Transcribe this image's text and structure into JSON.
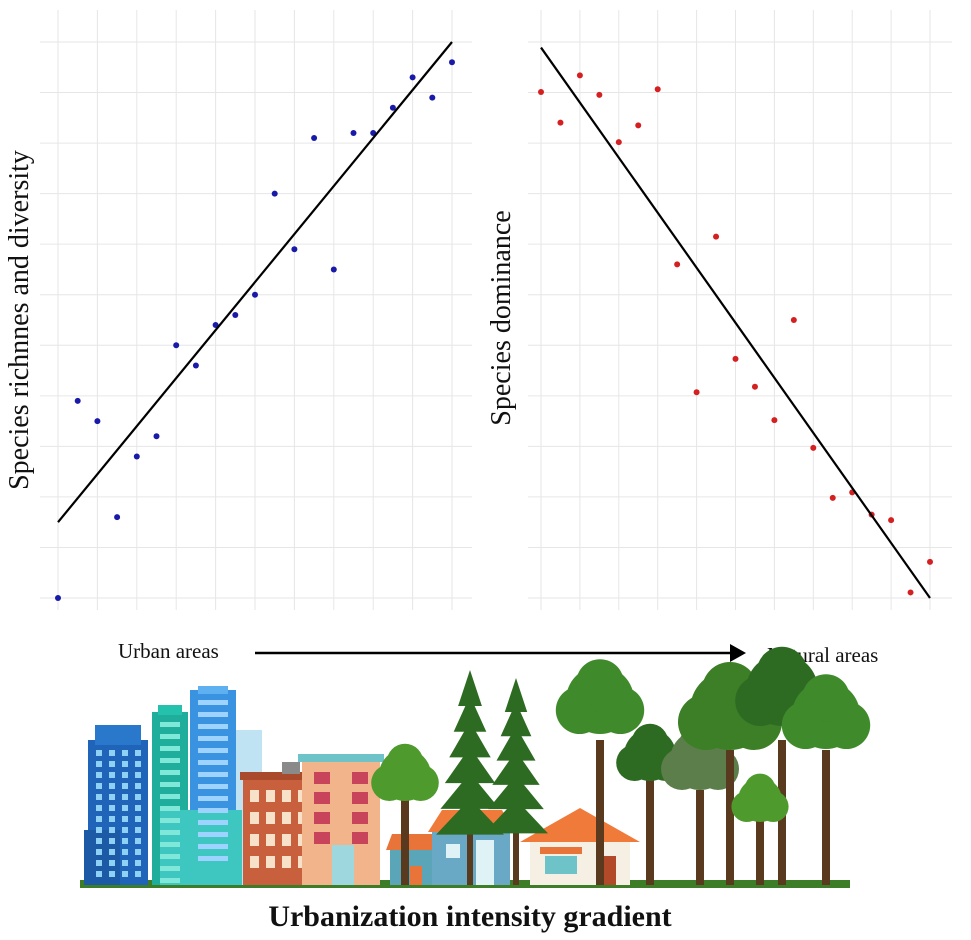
{
  "chart_data": [
    {
      "type": "scatter",
      "ylabel": "Species richnnes and diversity",
      "xlabel": "",
      "title": "",
      "grid": true,
      "xlim": [
        0,
        20
      ],
      "ylim": [
        0,
        11
      ],
      "point_color": "#1a1aa8",
      "trend_line": {
        "x": [
          0,
          20
        ],
        "y": [
          1.5,
          11
        ]
      },
      "series": [
        {
          "x": [
            0,
            1,
            2,
            3,
            4,
            5,
            6,
            7,
            8,
            9,
            10,
            11,
            12,
            13,
            14,
            15,
            16,
            17,
            18,
            19,
            20
          ],
          "y": [
            0,
            3.9,
            3.5,
            1.6,
            2.8,
            3.2,
            5.0,
            4.6,
            5.4,
            5.6,
            6.0,
            8.0,
            6.9,
            9.1,
            6.5,
            9.2,
            9.2,
            9.7,
            10.3,
            9.9,
            10.6
          ]
        }
      ]
    },
    {
      "type": "scatter",
      "ylabel": "Species dominance",
      "xlabel": "",
      "title": "",
      "grid": true,
      "xlim": [
        0,
        20
      ],
      "ylim": [
        0,
        10
      ],
      "point_color": "#d42020",
      "trend_line": {
        "x": [
          0,
          20
        ],
        "y": [
          9.9,
          0
        ]
      },
      "series": [
        {
          "x": [
            0,
            1,
            2,
            3,
            4,
            5,
            6,
            7,
            8,
            9,
            10,
            11,
            12,
            13,
            14,
            15,
            16,
            17,
            18,
            19,
            20
          ],
          "y": [
            9.1,
            8.55,
            9.4,
            9.05,
            8.2,
            8.5,
            9.15,
            6.0,
            3.7,
            6.5,
            4.3,
            3.8,
            3.2,
            5.0,
            2.7,
            1.8,
            1.9,
            1.5,
            1.4,
            0.1,
            0.65
          ]
        }
      ]
    }
  ],
  "gradient": {
    "left_label": "Urban areas",
    "right_label": "Natural areas"
  },
  "footer": {
    "title": "Urbanization intensity gradient"
  },
  "colors": {
    "axis_line": "#000000",
    "grid": "#e6e6e6",
    "tree_dark": "#2e6b22",
    "tree_light": "#4e9a2c",
    "trunk": "#5a3a1e",
    "building_blue": "#2f7fd0",
    "building_teal": "#22b3a6",
    "building_brick": "#c9603d",
    "building_peach": "#f2b48a",
    "roof_orange": "#f07a3a"
  }
}
